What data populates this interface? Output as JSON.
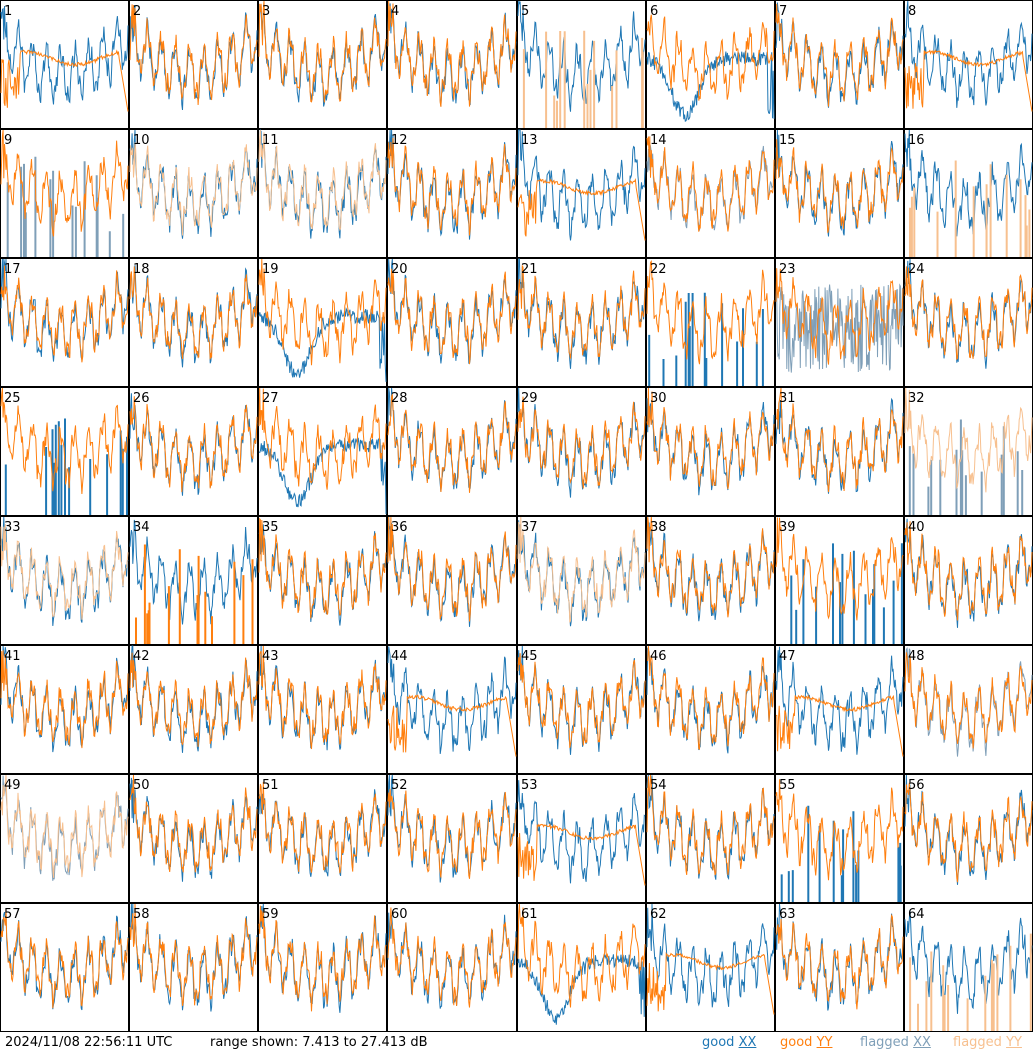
{
  "footer": {
    "timestamp": "2024/11/08 22:56:11 UTC",
    "range": "range shown: 7.413 to 27.413 dB"
  },
  "legend": [
    {
      "word": "good",
      "pol": "XX",
      "color": "#1f77b4"
    },
    {
      "word": "good",
      "pol": "YY",
      "color": "#ff7f0e"
    },
    {
      "word": "flagged",
      "pol": "XX",
      "color": "#7f9fb8"
    },
    {
      "word": "flagged",
      "pol": "YY",
      "color": "#f7c08f"
    }
  ],
  "chart_data": {
    "type": "line",
    "title": "",
    "xlabel": "",
    "ylabel": "",
    "ylim": [
      7.413,
      27.413
    ],
    "units": "dB",
    "grid": {
      "rows": 8,
      "cols": 8
    },
    "panels": [
      {
        "n": 1,
        "xx": "good",
        "yy": "good",
        "yyLow": true
      },
      {
        "n": 2,
        "xx": "good",
        "yy": "good"
      },
      {
        "n": 3,
        "xx": "good",
        "yy": "good"
      },
      {
        "n": 4,
        "xx": "good",
        "yy": "good"
      },
      {
        "n": 5,
        "xx": "good",
        "yy": "flagged",
        "yySpiky": true
      },
      {
        "n": 6,
        "xx": "good",
        "yy": "good",
        "xxDip": true
      },
      {
        "n": 7,
        "xx": "good",
        "yy": "good"
      },
      {
        "n": 8,
        "xx": "good",
        "yy": "good",
        "yyLow": true
      },
      {
        "n": 9,
        "xx": "flagged",
        "yy": "good",
        "xxSpiky": true
      },
      {
        "n": 10,
        "xx": "good",
        "yy": "flagged"
      },
      {
        "n": 11,
        "xx": "good",
        "yy": "flagged"
      },
      {
        "n": 12,
        "xx": "good",
        "yy": "good"
      },
      {
        "n": 13,
        "xx": "good",
        "yy": "good",
        "yyLow": true
      },
      {
        "n": 14,
        "xx": "flagged",
        "yy": "good"
      },
      {
        "n": 15,
        "xx": "good",
        "yy": "good"
      },
      {
        "n": 16,
        "xx": "good",
        "yy": "flagged",
        "yySpiky": true
      },
      {
        "n": 17,
        "xx": "good",
        "yy": "good"
      },
      {
        "n": 18,
        "xx": "good",
        "yy": "good"
      },
      {
        "n": 19,
        "xx": "good",
        "yy": "good",
        "xxDip": true
      },
      {
        "n": 20,
        "xx": "good",
        "yy": "good"
      },
      {
        "n": 21,
        "xx": "good",
        "yy": "good"
      },
      {
        "n": 22,
        "xx": "good",
        "yy": "good",
        "xxSpiky": true
      },
      {
        "n": 23,
        "xx": "flagged",
        "yy": "good",
        "xxNoisy": true
      },
      {
        "n": 24,
        "xx": "good",
        "yy": "good"
      },
      {
        "n": 25,
        "xx": "good",
        "yy": "good",
        "xxSpiky": true
      },
      {
        "n": 26,
        "xx": "good",
        "yy": "good"
      },
      {
        "n": 27,
        "xx": "good",
        "yy": "good",
        "xxDip": true
      },
      {
        "n": 28,
        "xx": "good",
        "yy": "good"
      },
      {
        "n": 29,
        "xx": "good",
        "yy": "good"
      },
      {
        "n": 30,
        "xx": "good",
        "yy": "good"
      },
      {
        "n": 31,
        "xx": "good",
        "yy": "good"
      },
      {
        "n": 32,
        "xx": "flagged",
        "yy": "flagged",
        "xxSpiky": true
      },
      {
        "n": 33,
        "xx": "good",
        "yy": "flagged"
      },
      {
        "n": 34,
        "xx": "good",
        "yy": "good",
        "yySpiky": true
      },
      {
        "n": 35,
        "xx": "good",
        "yy": "good"
      },
      {
        "n": 36,
        "xx": "good",
        "yy": "good"
      },
      {
        "n": 37,
        "xx": "good",
        "yy": "flagged"
      },
      {
        "n": 38,
        "xx": "good",
        "yy": "good"
      },
      {
        "n": 39,
        "xx": "good",
        "yy": "good",
        "xxSpiky": true
      },
      {
        "n": 40,
        "xx": "good",
        "yy": "good"
      },
      {
        "n": 41,
        "xx": "good",
        "yy": "good"
      },
      {
        "n": 42,
        "xx": "good",
        "yy": "good"
      },
      {
        "n": 43,
        "xx": "good",
        "yy": "good"
      },
      {
        "n": 44,
        "xx": "good",
        "yy": "good",
        "yyLow": true
      },
      {
        "n": 45,
        "xx": "good",
        "yy": "good"
      },
      {
        "n": 46,
        "xx": "good",
        "yy": "good"
      },
      {
        "n": 47,
        "xx": "good",
        "yy": "good",
        "yyLow": true
      },
      {
        "n": 48,
        "xx": "flagged",
        "yy": "good"
      },
      {
        "n": 49,
        "xx": "flagged",
        "yy": "flagged"
      },
      {
        "n": 50,
        "xx": "good",
        "yy": "good"
      },
      {
        "n": 51,
        "xx": "good",
        "yy": "good"
      },
      {
        "n": 52,
        "xx": "good",
        "yy": "good"
      },
      {
        "n": 53,
        "xx": "good",
        "yy": "good",
        "yyLow": true
      },
      {
        "n": 54,
        "xx": "good",
        "yy": "good"
      },
      {
        "n": 55,
        "xx": "good",
        "yy": "good",
        "xxSpiky": true
      },
      {
        "n": 56,
        "xx": "good",
        "yy": "good"
      },
      {
        "n": 57,
        "xx": "good",
        "yy": "good"
      },
      {
        "n": 58,
        "xx": "good",
        "yy": "good"
      },
      {
        "n": 59,
        "xx": "good",
        "yy": "good"
      },
      {
        "n": 60,
        "xx": "good",
        "yy": "good"
      },
      {
        "n": 61,
        "xx": "good",
        "yy": "good",
        "xxDip": true
      },
      {
        "n": 62,
        "xx": "good",
        "yy": "good",
        "yyLow": true
      },
      {
        "n": 63,
        "xx": "good",
        "yy": "good"
      },
      {
        "n": 64,
        "xx": "good",
        "yy": "flagged",
        "yySpiky": true
      }
    ]
  }
}
